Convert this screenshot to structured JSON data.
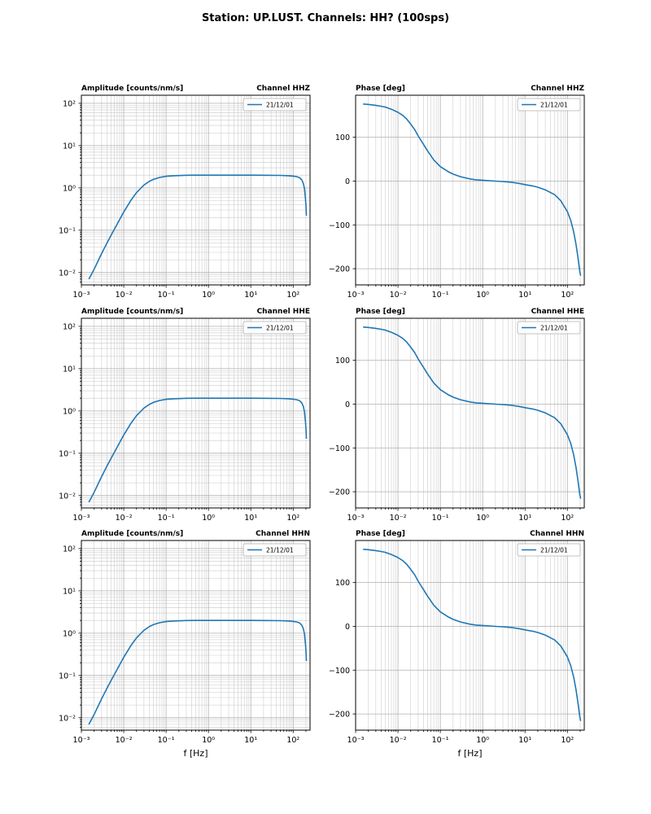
{
  "figure": {
    "title": "Station: UP.LUST. Channels: HH? (100sps)",
    "accent_color": "#1f77b4",
    "grid_major_color": "#b0b0b0",
    "grid_minor_color": "#c9c9c9",
    "background": "#ffffff"
  },
  "chart_data": [
    {
      "id": "amplitude-hhz",
      "type": "line",
      "row": 0,
      "col": 0,
      "title_left": "Amplitude [counts/nm/s]",
      "title_right": "Channel HHZ",
      "xscale": "log",
      "yscale": "log",
      "xlim": [
        0.001,
        250
      ],
      "ylim": [
        0.0051,
        155
      ],
      "xtick_exponents": [
        -3,
        -2,
        -1,
        0,
        1,
        2
      ],
      "xtick_labels": [
        "10⁻³",
        "10⁻²",
        "10⁻¹",
        "10⁰",
        "10¹",
        "10²"
      ],
      "ytick_exponents": [
        -2,
        -1,
        0,
        1,
        2
      ],
      "ytick_labels": [
        "10⁻²",
        "10⁻¹",
        "10⁰",
        "10¹",
        "10²"
      ],
      "legend": [
        "21/12/01"
      ],
      "grid": "both",
      "xlabel": "",
      "x": [
        0.0015,
        0.002,
        0.003,
        0.004,
        0.005,
        0.007,
        0.01,
        0.015,
        0.02,
        0.025,
        0.03,
        0.04,
        0.05,
        0.07,
        0.1,
        0.15,
        0.2,
        0.3,
        0.5,
        1,
        2,
        5,
        10,
        20,
        50,
        80,
        100,
        120,
        140,
        160,
        175,
        185,
        195,
        200,
        205
      ],
      "y": [
        0.007,
        0.012,
        0.028,
        0.049,
        0.075,
        0.14,
        0.27,
        0.52,
        0.77,
        0.97,
        1.17,
        1.42,
        1.59,
        1.77,
        1.88,
        1.94,
        1.96,
        1.99,
        2.0,
        2.0,
        2.0,
        2.0,
        2.0,
        1.99,
        1.97,
        1.94,
        1.9,
        1.85,
        1.76,
        1.55,
        1.25,
        0.95,
        0.55,
        0.38,
        0.22
      ]
    },
    {
      "id": "phase-hhz",
      "type": "line",
      "row": 0,
      "col": 1,
      "title_left": "Phase [deg]",
      "title_right": "Channel HHZ",
      "xscale": "log",
      "yscale": "linear",
      "xlim": [
        0.001,
        250
      ],
      "ylim": [
        -237,
        196
      ],
      "xtick_exponents": [
        -3,
        -2,
        -1,
        0,
        1,
        2
      ],
      "xtick_labels": [
        "10⁻³",
        "10⁻²",
        "10⁻¹",
        "10⁰",
        "10¹",
        "10²"
      ],
      "ytick_values": [
        -200,
        -100,
        0,
        100
      ],
      "ytick_labels": [
        "−200",
        "−100",
        "0",
        "100"
      ],
      "legend": [
        "21/12/01"
      ],
      "grid": "x-both-y-major",
      "xlabel": "",
      "x": [
        0.0015,
        0.002,
        0.003,
        0.004,
        0.005,
        0.007,
        0.01,
        0.013,
        0.016,
        0.02,
        0.025,
        0.03,
        0.04,
        0.05,
        0.07,
        0.1,
        0.15,
        0.2,
        0.3,
        0.5,
        0.7,
        1,
        2,
        3,
        5,
        7,
        10,
        15,
        20,
        30,
        50,
        70,
        100,
        120,
        140,
        160,
        175,
        185,
        195,
        200,
        205
      ],
      "y": [
        176,
        175,
        173,
        171,
        169,
        164,
        157,
        150,
        142,
        130,
        117,
        103,
        84,
        69,
        48,
        33,
        22,
        16,
        10,
        5,
        3,
        2,
        0,
        -1,
        -3,
        -5,
        -8,
        -11,
        -14,
        -20,
        -31,
        -45,
        -70,
        -90,
        -115,
        -145,
        -170,
        -188,
        -205,
        -211,
        -216
      ]
    },
    {
      "id": "amplitude-hhe",
      "type": "line",
      "row": 1,
      "col": 0,
      "title_left": "Amplitude [counts/nm/s]",
      "title_right": "Channel HHE",
      "xscale": "log",
      "yscale": "log",
      "xlim": [
        0.001,
        250
      ],
      "ylim": [
        0.0051,
        155
      ],
      "xtick_exponents": [
        -3,
        -2,
        -1,
        0,
        1,
        2
      ],
      "xtick_labels": [
        "10⁻³",
        "10⁻²",
        "10⁻¹",
        "10⁰",
        "10¹",
        "10²"
      ],
      "ytick_exponents": [
        -2,
        -1,
        0,
        1,
        2
      ],
      "ytick_labels": [
        "10⁻²",
        "10⁻¹",
        "10⁰",
        "10¹",
        "10²"
      ],
      "legend": [
        "21/12/01"
      ],
      "grid": "both",
      "xlabel": "",
      "x": [
        0.0015,
        0.002,
        0.003,
        0.004,
        0.005,
        0.007,
        0.01,
        0.015,
        0.02,
        0.025,
        0.03,
        0.04,
        0.05,
        0.07,
        0.1,
        0.15,
        0.2,
        0.3,
        0.5,
        1,
        2,
        5,
        10,
        20,
        50,
        80,
        100,
        120,
        140,
        160,
        175,
        185,
        195,
        200,
        205
      ],
      "y": [
        0.007,
        0.012,
        0.028,
        0.049,
        0.075,
        0.14,
        0.27,
        0.52,
        0.77,
        0.97,
        1.17,
        1.42,
        1.59,
        1.77,
        1.88,
        1.94,
        1.96,
        1.99,
        2.0,
        2.0,
        2.0,
        2.0,
        2.0,
        1.99,
        1.97,
        1.94,
        1.9,
        1.85,
        1.76,
        1.55,
        1.25,
        0.95,
        0.55,
        0.38,
        0.22
      ]
    },
    {
      "id": "phase-hhe",
      "type": "line",
      "row": 1,
      "col": 1,
      "title_left": "Phase [deg]",
      "title_right": "Channel HHE",
      "xscale": "log",
      "yscale": "linear",
      "xlim": [
        0.001,
        250
      ],
      "ylim": [
        -237,
        196
      ],
      "xtick_exponents": [
        -3,
        -2,
        -1,
        0,
        1,
        2
      ],
      "xtick_labels": [
        "10⁻³",
        "10⁻²",
        "10⁻¹",
        "10⁰",
        "10¹",
        "10²"
      ],
      "ytick_values": [
        -200,
        -100,
        0,
        100
      ],
      "ytick_labels": [
        "−200",
        "−100",
        "0",
        "100"
      ],
      "legend": [
        "21/12/01"
      ],
      "grid": "x-both-y-major",
      "xlabel": "",
      "x": [
        0.0015,
        0.002,
        0.003,
        0.004,
        0.005,
        0.007,
        0.01,
        0.013,
        0.016,
        0.02,
        0.025,
        0.03,
        0.04,
        0.05,
        0.07,
        0.1,
        0.15,
        0.2,
        0.3,
        0.5,
        0.7,
        1,
        2,
        3,
        5,
        7,
        10,
        15,
        20,
        30,
        50,
        70,
        100,
        120,
        140,
        160,
        175,
        185,
        195,
        200,
        205
      ],
      "y": [
        176,
        175,
        173,
        171,
        169,
        164,
        157,
        150,
        142,
        130,
        117,
        103,
        84,
        69,
        48,
        33,
        22,
        16,
        10,
        5,
        3,
        2,
        0,
        -1,
        -3,
        -5,
        -8,
        -11,
        -14,
        -20,
        -31,
        -45,
        -70,
        -90,
        -115,
        -145,
        -170,
        -188,
        -205,
        -211,
        -216
      ]
    },
    {
      "id": "amplitude-hhn",
      "type": "line",
      "row": 2,
      "col": 0,
      "title_left": "Amplitude [counts/nm/s]",
      "title_right": "Channel HHN",
      "xscale": "log",
      "yscale": "log",
      "xlim": [
        0.001,
        250
      ],
      "ylim": [
        0.0051,
        155
      ],
      "xtick_exponents": [
        -3,
        -2,
        -1,
        0,
        1,
        2
      ],
      "xtick_labels": [
        "10⁻³",
        "10⁻²",
        "10⁻¹",
        "10⁰",
        "10¹",
        "10²"
      ],
      "ytick_exponents": [
        -2,
        -1,
        0,
        1,
        2
      ],
      "ytick_labels": [
        "10⁻²",
        "10⁻¹",
        "10⁰",
        "10¹",
        "10²"
      ],
      "legend": [
        "21/12/01"
      ],
      "grid": "both",
      "xlabel": "f [Hz]",
      "x": [
        0.0015,
        0.002,
        0.003,
        0.004,
        0.005,
        0.007,
        0.01,
        0.015,
        0.02,
        0.025,
        0.03,
        0.04,
        0.05,
        0.07,
        0.1,
        0.15,
        0.2,
        0.3,
        0.5,
        1,
        2,
        5,
        10,
        20,
        50,
        80,
        100,
        120,
        140,
        160,
        175,
        185,
        195,
        200,
        205
      ],
      "y": [
        0.007,
        0.012,
        0.028,
        0.049,
        0.075,
        0.14,
        0.27,
        0.52,
        0.77,
        0.97,
        1.17,
        1.42,
        1.59,
        1.77,
        1.88,
        1.94,
        1.96,
        1.99,
        2.0,
        2.0,
        2.0,
        2.0,
        2.0,
        1.99,
        1.97,
        1.94,
        1.9,
        1.85,
        1.76,
        1.55,
        1.25,
        0.95,
        0.55,
        0.38,
        0.22
      ]
    },
    {
      "id": "phase-hhn",
      "type": "line",
      "row": 2,
      "col": 1,
      "title_left": "Phase [deg]",
      "title_right": "Channel HHN",
      "xscale": "log",
      "yscale": "linear",
      "xlim": [
        0.001,
        250
      ],
      "ylim": [
        -237,
        196
      ],
      "xtick_exponents": [
        -3,
        -2,
        -1,
        0,
        1,
        2
      ],
      "xtick_labels": [
        "10⁻³",
        "10⁻²",
        "10⁻¹",
        "10⁰",
        "10¹",
        "10²"
      ],
      "ytick_values": [
        -200,
        -100,
        0,
        100
      ],
      "ytick_labels": [
        "−200",
        "−100",
        "0",
        "100"
      ],
      "legend": [
        "21/12/01"
      ],
      "grid": "x-both-y-major",
      "xlabel": "f [Hz]",
      "x": [
        0.0015,
        0.002,
        0.003,
        0.004,
        0.005,
        0.007,
        0.01,
        0.013,
        0.016,
        0.02,
        0.025,
        0.03,
        0.04,
        0.05,
        0.07,
        0.1,
        0.15,
        0.2,
        0.3,
        0.5,
        0.7,
        1,
        2,
        3,
        5,
        7,
        10,
        15,
        20,
        30,
        50,
        70,
        100,
        120,
        140,
        160,
        175,
        185,
        195,
        200,
        205
      ],
      "y": [
        176,
        175,
        173,
        171,
        169,
        164,
        157,
        150,
        142,
        130,
        117,
        103,
        84,
        69,
        48,
        33,
        22,
        16,
        10,
        5,
        3,
        2,
        0,
        -1,
        -3,
        -5,
        -8,
        -11,
        -14,
        -20,
        -31,
        -45,
        -70,
        -90,
        -115,
        -145,
        -170,
        -188,
        -205,
        -211,
        -216
      ]
    }
  ]
}
